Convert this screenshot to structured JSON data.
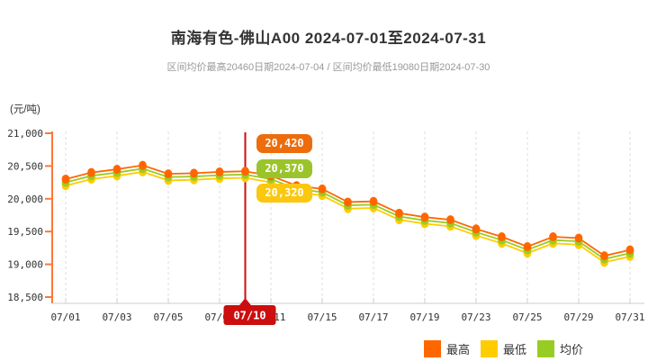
{
  "chart_data": {
    "type": "line",
    "title": "南海有色-佛山A00 2024-07-01至2024-07-31",
    "subtitle": "区间均价最高20460日期2024-07-04 / 区间均价最低19080日期2024-07-30",
    "unit_label": "(元/吨)",
    "ylabel": "元/吨",
    "ylim": [
      18500,
      21000
    ],
    "y_tick_values": [
      21000,
      20500,
      20000,
      19500,
      19000,
      18500
    ],
    "y_tick_labels": [
      "21,000",
      "20,500",
      "20,000",
      "19,500",
      "19,000",
      "18,500"
    ],
    "x": [
      "07/01",
      "07/02",
      "07/03",
      "07/04",
      "07/05",
      "07/08",
      "07/09",
      "07/10",
      "07/11",
      "07/12",
      "07/15",
      "07/16",
      "07/17",
      "07/18",
      "07/19",
      "07/22",
      "07/23",
      "07/24",
      "07/25",
      "07/26",
      "07/29",
      "07/30",
      "07/31"
    ],
    "x_tick_every": 2,
    "grid": "vertical-dashed",
    "legend_position": "bottom-right",
    "series": [
      {
        "name": "最高",
        "color": "#ff6600",
        "values": [
          20300,
          20400,
          20450,
          20510,
          20380,
          20390,
          20410,
          20420,
          20350,
          20200,
          20150,
          19950,
          19960,
          19780,
          19720,
          19680,
          19540,
          19420,
          19270,
          19420,
          19400,
          19130,
          19220
        ]
      },
      {
        "name": "最低",
        "color": "#ffcc00",
        "values": [
          20200,
          20300,
          20350,
          20410,
          20280,
          20290,
          20310,
          20320,
          20250,
          20100,
          20050,
          19850,
          19860,
          19680,
          19620,
          19580,
          19440,
          19320,
          19170,
          19320,
          19300,
          19030,
          19120
        ]
      },
      {
        "name": "均价",
        "color": "#99cc22",
        "values": [
          20250,
          20350,
          20400,
          20460,
          20330,
          20340,
          20360,
          20370,
          20300,
          20150,
          20100,
          19900,
          19910,
          19730,
          19670,
          19630,
          19490,
          19370,
          19220,
          19370,
          19350,
          19080,
          19170
        ]
      }
    ],
    "selected_point": {
      "index": 7,
      "date": "07/10",
      "marker_color": "#cc0e0e",
      "tooltip": [
        {
          "series": "最高",
          "value": "20,420",
          "color": "#ed6d0d"
        },
        {
          "series": "均价",
          "value": "20,370",
          "color": "#9bc42c"
        },
        {
          "series": "最低",
          "value": "20,320",
          "color": "#fbc70f"
        }
      ]
    }
  },
  "legend": {
    "items": [
      {
        "label": "最高",
        "color": "#ff6600"
      },
      {
        "label": "最低",
        "color": "#ffcc00"
      },
      {
        "label": "均价",
        "color": "#99cc22"
      }
    ]
  }
}
